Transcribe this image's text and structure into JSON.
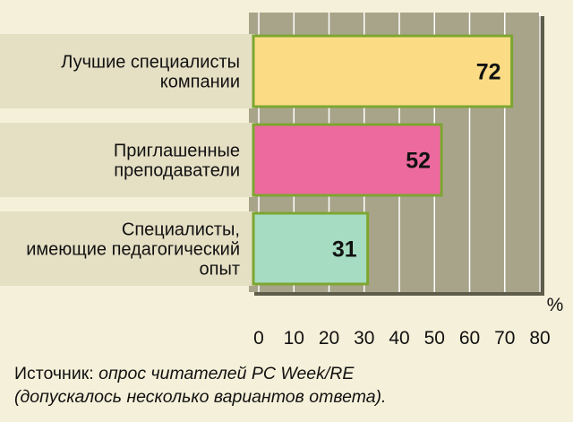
{
  "chart_data": {
    "type": "bar",
    "orientation": "horizontal",
    "categories": [
      [
        "Лучшие специалисты",
        "компании"
      ],
      [
        "Приглашенные",
        "преподаватели"
      ],
      [
        "Специалисты,",
        "имеющие педагогический",
        "опыт"
      ]
    ],
    "values": [
      72,
      52,
      31
    ],
    "value_labels": [
      "72",
      "52",
      "31"
    ],
    "bar_colors": [
      "#fbdc84",
      "#ec6a9e",
      "#a6dcc2"
    ],
    "bar_border_color": "#7da631",
    "xlim": [
      0,
      80
    ],
    "ticks": [
      "0",
      "10",
      "20",
      "30",
      "40",
      "50",
      "60",
      "70",
      "80"
    ],
    "unit": "%",
    "grid": true,
    "plot_background": "#a8a48a",
    "band_color": "#e5dfc4"
  },
  "source": {
    "prefix": "Источник: ",
    "line1_italic": "опрос читателей PC Week/RE",
    "line2": "(допускалось несколько вариантов ответа)."
  }
}
